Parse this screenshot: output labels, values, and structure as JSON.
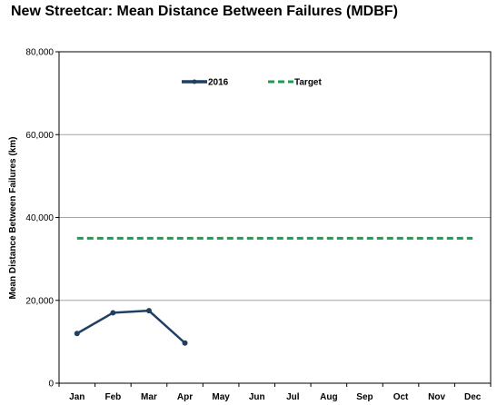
{
  "chart_data": {
    "type": "line",
    "title": "New Streetcar: Mean Distance Between Failures (MDBF)",
    "xlabel": "",
    "ylabel": "Mean Distance Between Failures (km)",
    "ylim": [
      0,
      80000
    ],
    "yticks": [
      0,
      20000,
      40000,
      60000,
      80000
    ],
    "ytick_labels": [
      "0",
      "20,000",
      "40,000",
      "60,000",
      "80,000"
    ],
    "categories": [
      "Jan",
      "Feb",
      "Mar",
      "Apr",
      "May",
      "Jun",
      "Jul",
      "Aug",
      "Sep",
      "Oct",
      "Nov",
      "Dec"
    ],
    "grid": true,
    "legend_position": "top",
    "series": [
      {
        "name": "2016",
        "color": "#1f3f63",
        "style": "solid",
        "values": [
          12000,
          17000,
          17500,
          9700,
          null,
          null,
          null,
          null,
          null,
          null,
          null,
          null
        ]
      },
      {
        "name": "Target",
        "color": "#1a9e4f",
        "style": "dashed",
        "values": [
          35000,
          35000,
          35000,
          35000,
          35000,
          35000,
          35000,
          35000,
          35000,
          35000,
          35000,
          35000
        ]
      }
    ]
  }
}
